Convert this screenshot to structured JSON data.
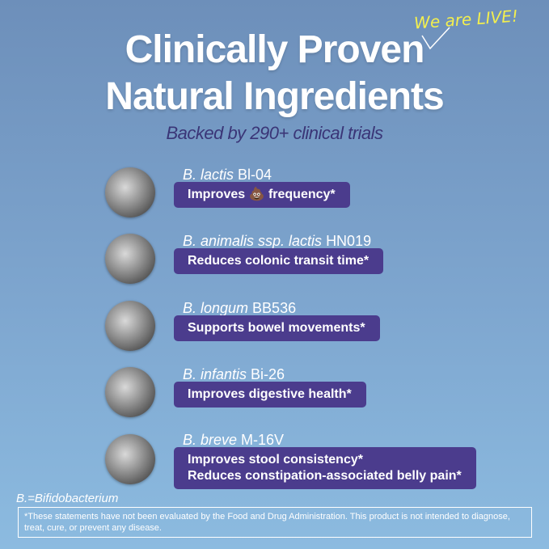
{
  "badge": "We are LIVE!",
  "header": {
    "title_lines": [
      "Clinically Proven",
      "Natural Ingredients"
    ],
    "subtitle": "Backed by 290+ clinical trials"
  },
  "items": [
    {
      "species": "B. lactis",
      "strain": "Bl-04",
      "benefits": [
        "Improves 💩 frequency*"
      ]
    },
    {
      "species": "B. animalis ssp. lactis",
      "strain": "HN019",
      "benefits": [
        "Reduces colonic transit time*"
      ]
    },
    {
      "species": "B. longum",
      "strain": "BB536",
      "benefits": [
        "Supports bowel movements*"
      ]
    },
    {
      "species": "B. infantis",
      "strain": "Bi-26",
      "benefits": [
        "Improves digestive health*"
      ]
    },
    {
      "species": "B. breve",
      "strain": "M-16V",
      "benefits": [
        "Improves stool consistency*",
        "Reduces constipation-associated belly pain*"
      ]
    }
  ],
  "footnote": "B.=Bifidobacterium",
  "disclaimer": [
    "*These statements have not been evaluated by the Food and Drug Administration. This product is not intended to diagnose,",
    "treat, cure, or prevent any disease."
  ]
}
